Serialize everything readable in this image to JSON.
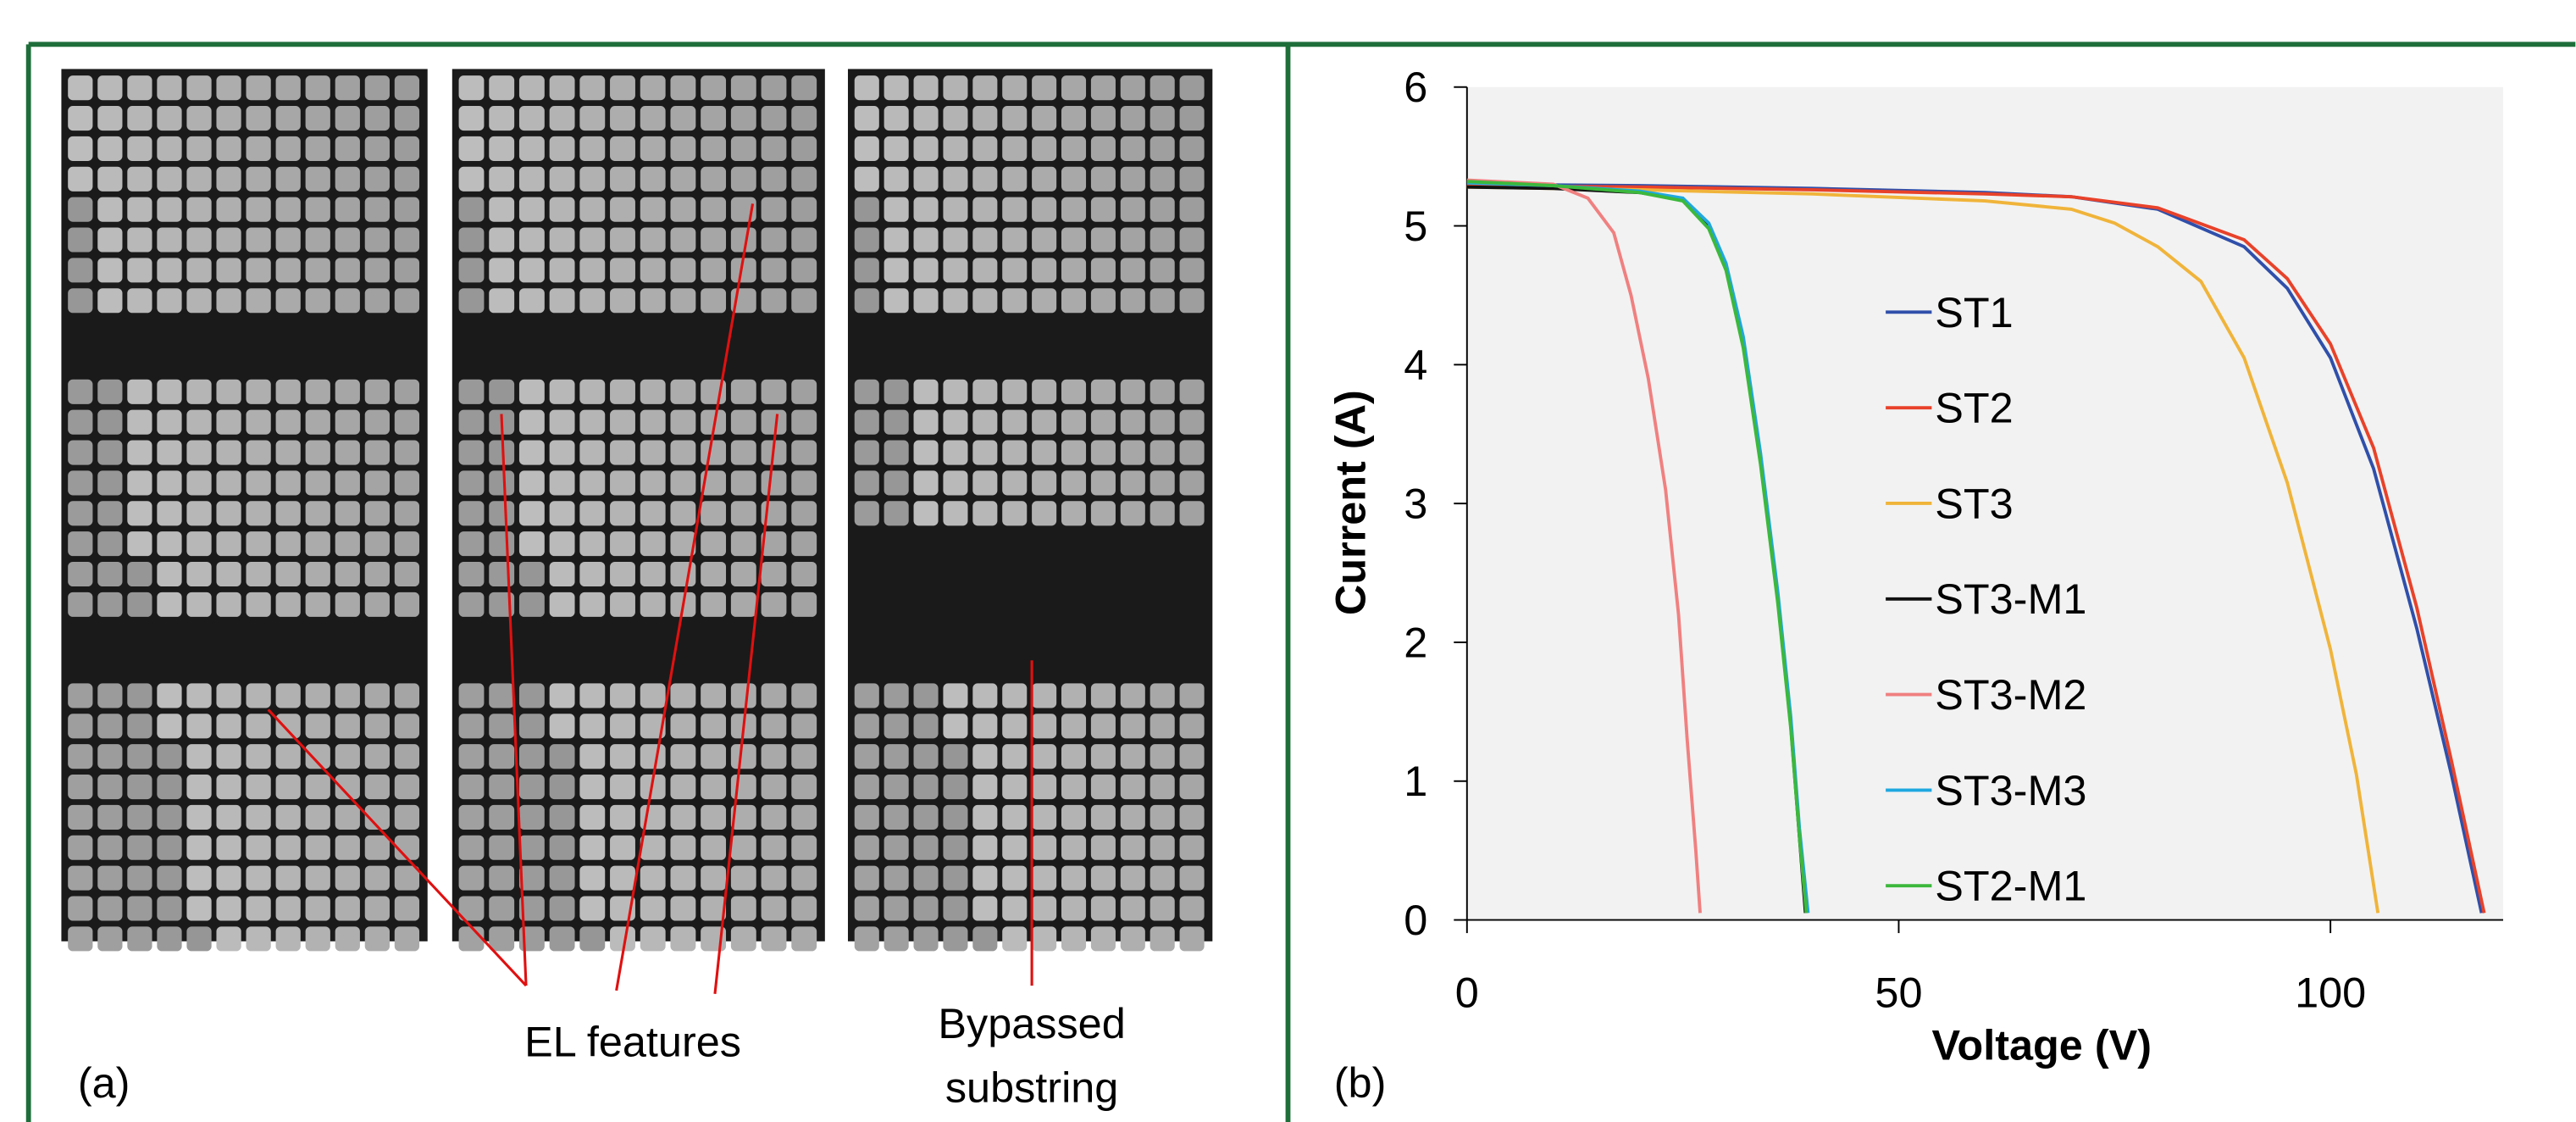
{
  "panel_a": {
    "label": "(a)",
    "annotations": [
      "EL features",
      "Bypassed",
      "substring"
    ]
  },
  "panel_b": {
    "label": "(b)"
  },
  "chart_data": {
    "type": "line",
    "x_label": "Voltage (V)",
    "y_label": "Current (A)",
    "xlim": [
      0,
      120
    ],
    "ylim": [
      0,
      6
    ],
    "xticks": [
      0,
      50,
      100
    ],
    "yticks": [
      0,
      1,
      2,
      3,
      4,
      5,
      6
    ],
    "background": "#f2f2f2",
    "series": [
      {
        "name": "ST1",
        "color": "#2f4faa",
        "x": [
          0,
          20,
          40,
          60,
          70,
          80,
          90,
          95,
          100,
          105,
          110,
          114,
          117.5
        ],
        "values": [
          5.3,
          5.29,
          5.27,
          5.24,
          5.21,
          5.12,
          4.85,
          4.55,
          4.05,
          3.25,
          2.1,
          1.05,
          0.05
        ]
      },
      {
        "name": "ST2",
        "color": "#e8422a",
        "x": [
          0,
          20,
          40,
          60,
          70,
          80,
          90,
          95,
          100,
          105,
          110,
          114,
          117.8
        ],
        "values": [
          5.29,
          5.28,
          5.26,
          5.23,
          5.21,
          5.13,
          4.9,
          4.62,
          4.15,
          3.4,
          2.25,
          1.15,
          0.05
        ]
      },
      {
        "name": "ST3",
        "color": "#f0b43a",
        "x": [
          0,
          20,
          40,
          60,
          70,
          75,
          80,
          85,
          90,
          95,
          100,
          103,
          105.5
        ],
        "values": [
          5.28,
          5.26,
          5.23,
          5.18,
          5.12,
          5.02,
          4.85,
          4.6,
          4.05,
          3.15,
          1.95,
          1.05,
          0.05
        ]
      },
      {
        "name": "ST3-M1",
        "color": "#111111",
        "x": [
          0,
          10,
          20,
          25,
          28,
          30,
          32,
          34,
          36,
          37.5,
          38.5,
          39.2
        ],
        "values": [
          5.28,
          5.27,
          5.24,
          5.19,
          5.0,
          4.7,
          4.15,
          3.3,
          2.3,
          1.4,
          0.6,
          0.05
        ]
      },
      {
        "name": "ST3-M2",
        "color": "#f08080",
        "x": [
          0,
          10,
          14,
          17,
          19,
          21,
          23,
          24.5,
          25.5,
          26.5,
          27
        ],
        "values": [
          5.33,
          5.3,
          5.2,
          4.95,
          4.5,
          3.9,
          3.1,
          2.2,
          1.3,
          0.5,
          0.05
        ]
      },
      {
        "name": "ST3-M3",
        "color": "#1fa8e0",
        "x": [
          0,
          10,
          20,
          25,
          28,
          30,
          32,
          34,
          36,
          37.5,
          38.5,
          39.5
        ],
        "values": [
          5.31,
          5.29,
          5.25,
          5.2,
          5.02,
          4.73,
          4.2,
          3.36,
          2.36,
          1.46,
          0.66,
          0.05
        ]
      },
      {
        "name": "ST2-M1",
        "color": "#3cb83c",
        "x": [
          0,
          10,
          20,
          25,
          28,
          30,
          32,
          34,
          36,
          37.5,
          38.5,
          39.3
        ],
        "values": [
          5.32,
          5.29,
          5.24,
          5.18,
          4.98,
          4.68,
          4.12,
          3.28,
          2.28,
          1.38,
          0.6,
          0.05
        ]
      }
    ]
  }
}
